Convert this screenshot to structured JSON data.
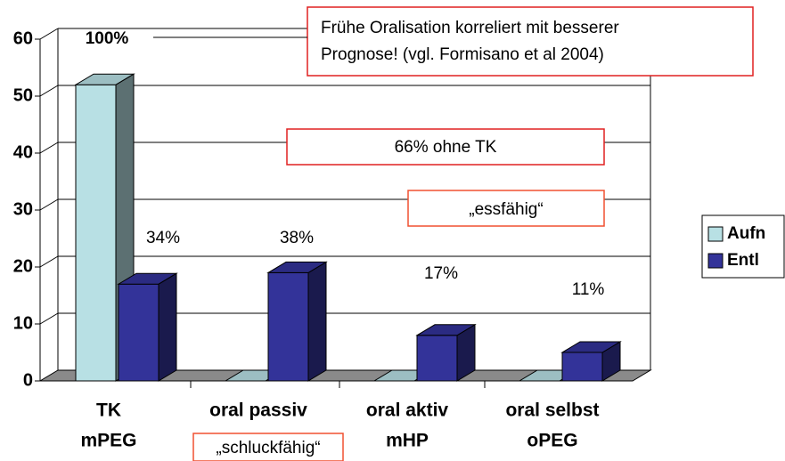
{
  "chart_data": {
    "type": "bar3d",
    "categories": [
      [
        "TK",
        "mPEG"
      ],
      [
        "oral passiv",
        ""
      ],
      [
        "oral aktiv",
        "mHP"
      ],
      [
        "oral selbst",
        "oPEG"
      ]
    ],
    "series": [
      {
        "name": "Aufn",
        "color": "#b8e0e4",
        "values": [
          52,
          0,
          0,
          0
        ]
      },
      {
        "name": "Entl",
        "color": "#333399",
        "values": [
          17,
          19,
          8,
          5
        ]
      }
    ],
    "ylim": [
      0,
      60
    ],
    "yticks": [
      0,
      10,
      20,
      30,
      40,
      50,
      60
    ],
    "grid": true,
    "legend": "right",
    "annotations": {
      "pct": [
        "100%",
        "34%",
        "38%",
        "17%",
        "11%"
      ],
      "note": [
        "Frühe Oralisation korreliert mit besserer",
        "Prognose! (vgl. Formisano et al 2004)"
      ],
      "box1": "66% ohne TK",
      "box2": "„essfähig“",
      "box3": "„schluckfähig“"
    }
  }
}
